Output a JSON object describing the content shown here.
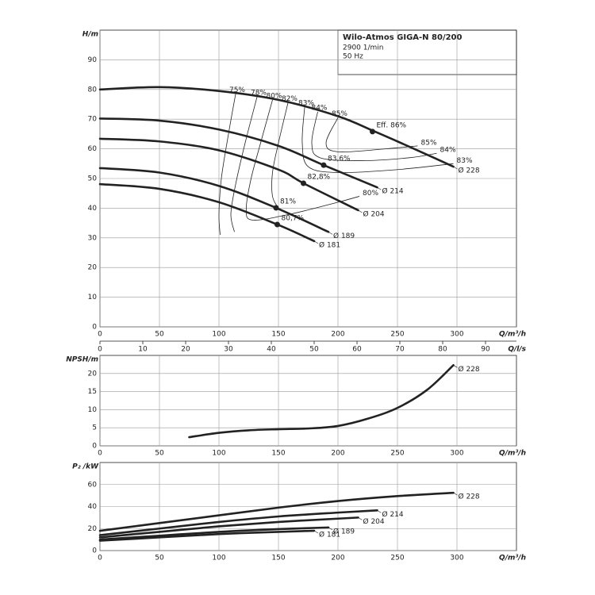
{
  "chart_data": [
    {
      "type": "line",
      "title": "Wilo-Atmos GIGA-N 80/200",
      "subtitle": [
        "2900 1/min",
        "50 Hz"
      ],
      "y_label": "H/m",
      "x_label": "Q/m³/h",
      "x2_label": "Q/l/s",
      "xlim": [
        0,
        350
      ],
      "xticks": [
        0,
        50,
        100,
        150,
        200,
        250,
        300
      ],
      "x2lim": [
        0,
        97.22
      ],
      "x2ticks": [
        0,
        10,
        20,
        30,
        40,
        50,
        60,
        70,
        80,
        90
      ],
      "ylim": [
        0,
        100
      ],
      "yticks": [
        0,
        10,
        20,
        30,
        40,
        50,
        60,
        70,
        80,
        90
      ],
      "grid": true,
      "color": "#222222",
      "series": [
        {
          "name": "Ø 228",
          "x": [
            0,
            50,
            100,
            150,
            200,
            230,
            250,
            275,
            297
          ],
          "values": [
            80,
            80.8,
            79.5,
            76.5,
            71,
            66,
            62.5,
            58,
            54
          ]
        },
        {
          "name": "Ø 214",
          "x": [
            0,
            50,
            100,
            150,
            188,
            233
          ],
          "values": [
            70.2,
            69.5,
            66.5,
            61,
            54.5,
            47
          ]
        },
        {
          "name": "Ø 204",
          "x": [
            0,
            50,
            100,
            150,
            171,
            217
          ],
          "values": [
            63.4,
            62.5,
            59.5,
            53,
            48.4,
            39.3
          ]
        },
        {
          "name": "Ø 189",
          "x": [
            0,
            50,
            100,
            148,
            192
          ],
          "values": [
            53.5,
            52,
            47.5,
            40.1,
            32
          ]
        },
        {
          "name": "Ø 181",
          "x": [
            0,
            50,
            100,
            149,
            180
          ],
          "values": [
            48.1,
            46.5,
            42,
            34.5,
            28.9
          ]
        }
      ],
      "efficiency_curves": [
        {
          "labels": [
            "75%"
          ],
          "x": [
            114,
            108,
            102,
            100,
            101
          ],
          "values": [
            78.5,
            65,
            50,
            38,
            31
          ]
        },
        {
          "labels": [
            "78%"
          ],
          "x": [
            132,
            122,
            114,
            110,
            113
          ],
          "values": [
            77.5,
            62,
            48,
            38,
            32
          ]
        },
        {
          "labels": [
            "80%",
            "80%"
          ],
          "x": [
            145,
            135,
            127,
            123,
            128,
            160,
            200,
            218
          ],
          "values": [
            76.5,
            62,
            50,
            40,
            36,
            38,
            42,
            44
          ]
        },
        {
          "labels": [
            "82%"
          ],
          "x": [
            158,
            150,
            145,
            145,
            150
          ],
          "values": [
            75.5,
            62,
            52,
            44,
            40
          ]
        },
        {
          "labels": [
            "83%",
            "83%"
          ],
          "x": [
            172,
            170,
            175,
            200,
            250,
            297
          ],
          "values": [
            74,
            62,
            54,
            52,
            53,
            55
          ]
        },
        {
          "labels": [
            "84%",
            "84%"
          ],
          "x": [
            183,
            178,
            185,
            220,
            260,
            283
          ],
          "values": [
            72.5,
            62,
            57,
            56,
            57,
            58.5
          ]
        },
        {
          "labels": [
            "85%",
            "85%"
          ],
          "x": [
            200,
            190,
            200,
            240,
            267
          ],
          "values": [
            70.5,
            62,
            59,
            60,
            61
          ]
        }
      ],
      "points": [
        {
          "label": "Eff. 86%",
          "x": 229,
          "value": 65.8
        },
        {
          "label": "83,6%",
          "x": 188,
          "value": 54.5
        },
        {
          "label": "82,8%",
          "x": 171,
          "value": 48.4
        },
        {
          "label": "81%",
          "x": 148,
          "value": 40.1
        },
        {
          "label": "80,7%",
          "x": 149,
          "value": 34.5
        }
      ]
    },
    {
      "type": "line",
      "y_label": "NPSH/m",
      "x_label": "Q/m³/h",
      "xlim": [
        0,
        350
      ],
      "xticks": [
        0,
        50,
        100,
        150,
        200,
        250,
        300
      ],
      "ylim": [
        0,
        25
      ],
      "yticks": [
        0,
        5,
        10,
        15,
        20
      ],
      "grid": true,
      "color": "#222222",
      "series": [
        {
          "name": "Ø 228",
          "x": [
            75,
            100,
            125,
            150,
            175,
            200,
            225,
            250,
            275,
            297
          ],
          "values": [
            2.4,
            3.6,
            4.3,
            4.6,
            4.8,
            5.5,
            7.5,
            10.5,
            15.5,
            22.3
          ]
        }
      ]
    },
    {
      "type": "line",
      "y_label": "P₂ /kW",
      "x_label": "Q/m³/h",
      "xlim": [
        0,
        350
      ],
      "xticks": [
        0,
        50,
        100,
        150,
        200,
        250,
        300
      ],
      "ylim": [
        0,
        80
      ],
      "yticks": [
        0,
        20,
        40,
        60
      ],
      "grid": true,
      "color": "#222222",
      "series": [
        {
          "name": "Ø 228",
          "x": [
            0,
            50,
            100,
            150,
            200,
            250,
            297
          ],
          "values": [
            18,
            25,
            32,
            39,
            45,
            49.5,
            52.5
          ]
        },
        {
          "name": "Ø 214",
          "x": [
            0,
            50,
            100,
            150,
            200,
            233
          ],
          "values": [
            14,
            20,
            26,
            31,
            34.5,
            36.5
          ]
        },
        {
          "name": "Ø 204",
          "x": [
            0,
            50,
            100,
            150,
            200,
            217
          ],
          "values": [
            12,
            17,
            22,
            26,
            29,
            30
          ]
        },
        {
          "name": "Ø 189",
          "x": [
            0,
            50,
            100,
            150,
            192
          ],
          "values": [
            10,
            13.5,
            17,
            19.5,
            21
          ]
        },
        {
          "name": "Ø 181",
          "x": [
            0,
            50,
            100,
            150,
            180
          ],
          "values": [
            9,
            12,
            15,
            17,
            18
          ]
        }
      ]
    }
  ]
}
